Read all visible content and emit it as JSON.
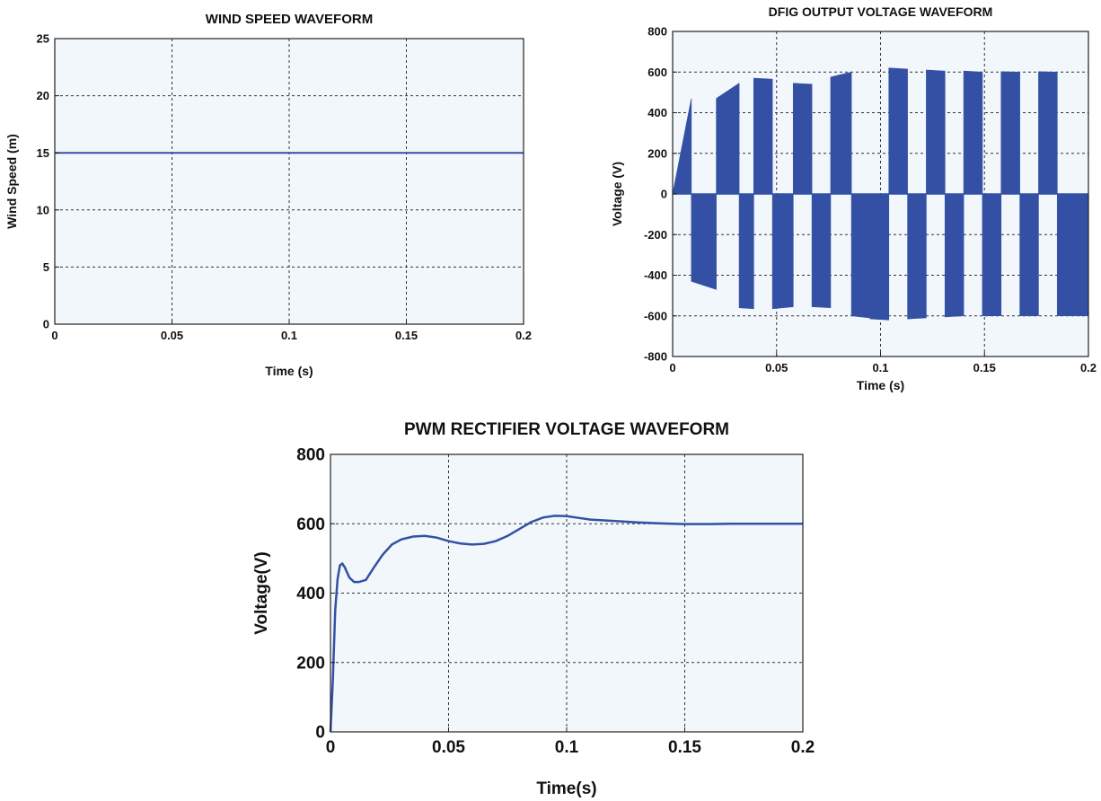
{
  "colors": {
    "line": "#3350a5",
    "plot_bg": "#f2f7fc",
    "grid": "#333333",
    "frame": "#222222"
  },
  "chart_data": [
    {
      "type": "line",
      "title": "WIND SPEED WAVEFORM",
      "xlabel": "Time (s)",
      "ylabel": "Wind Speed (m)",
      "xlim": [
        0,
        0.2
      ],
      "ylim": [
        0,
        25
      ],
      "x_ticks": [
        0,
        0.05,
        0.1,
        0.15,
        0.2
      ],
      "x_tick_labels": [
        "0",
        "0.05",
        "0.1",
        "0.15",
        "0.2"
      ],
      "y_ticks": [
        0,
        5,
        10,
        15,
        20,
        25
      ],
      "y_tick_labels": [
        "0",
        "5",
        "10",
        "15",
        "20",
        "25"
      ],
      "grid": true,
      "x": [
        0,
        0.2
      ],
      "y": [
        15,
        15
      ]
    },
    {
      "type": "area",
      "title": "DFIG OUTPUT VOLTAGE WAVEFORM",
      "xlabel": "Time (s)",
      "ylabel": "Voltage (V)",
      "xlim": [
        0,
        0.2
      ],
      "ylim": [
        -800,
        800
      ],
      "x_ticks": [
        0,
        0.05,
        0.1,
        0.15,
        0.2
      ],
      "x_tick_labels": [
        "0",
        "0.05",
        "0.1",
        "0.15",
        "0.2"
      ],
      "y_ticks": [
        -800,
        -600,
        -400,
        -200,
        0,
        200,
        400,
        600,
        800
      ],
      "y_tick_labels": [
        "-800",
        "-600",
        "-400",
        "-200",
        "0",
        "200",
        "400",
        "600",
        "800"
      ],
      "grid": true,
      "segments": [
        {
          "x0": 0.0,
          "x1": 0.009,
          "y0": 0,
          "y1": 470
        },
        {
          "x0": 0.009,
          "x1": 0.021,
          "y0": -430,
          "y1": -470
        },
        {
          "x0": 0.021,
          "x1": 0.032,
          "y0": 470,
          "y1": 545
        },
        {
          "x0": 0.032,
          "x1": 0.039,
          "y0": -560,
          "y1": -565
        },
        {
          "x0": 0.039,
          "x1": 0.048,
          "y0": 570,
          "y1": 565
        },
        {
          "x0": 0.048,
          "x1": 0.058,
          "y0": -565,
          "y1": -555
        },
        {
          "x0": 0.058,
          "x1": 0.067,
          "y0": 545,
          "y1": 540
        },
        {
          "x0": 0.067,
          "x1": 0.076,
          "y0": -555,
          "y1": -560
        },
        {
          "x0": 0.076,
          "x1": 0.086,
          "y0": 575,
          "y1": 600
        },
        {
          "x0": 0.086,
          "x1": 0.095,
          "y0": -600,
          "y1": -610
        },
        {
          "x0": 0.095,
          "x1": 0.104,
          "y0": -615,
          "y1": -620
        },
        {
          "x0": 0.104,
          "x1": 0.113,
          "y0": 620,
          "y1": 615
        },
        {
          "x0": 0.113,
          "x1": 0.122,
          "y0": -615,
          "y1": -610
        },
        {
          "x0": 0.122,
          "x1": 0.131,
          "y0": 610,
          "y1": 605
        },
        {
          "x0": 0.131,
          "x1": 0.14,
          "y0": -605,
          "y1": -600
        },
        {
          "x0": 0.14,
          "x1": 0.149,
          "y0": 605,
          "y1": 600
        },
        {
          "x0": 0.149,
          "x1": 0.158,
          "y0": -600,
          "y1": -600
        },
        {
          "x0": 0.158,
          "x1": 0.167,
          "y0": 602,
          "y1": 600
        },
        {
          "x0": 0.167,
          "x1": 0.176,
          "y0": -600,
          "y1": -600
        },
        {
          "x0": 0.176,
          "x1": 0.185,
          "y0": 602,
          "y1": 600
        },
        {
          "x0": 0.185,
          "x1": 0.2,
          "y0": -600,
          "y1": -600
        }
      ]
    },
    {
      "type": "line",
      "title": "PWM RECTIFIER VOLTAGE WAVEFORM",
      "xlabel": "Time(s)",
      "ylabel": "Voltage(V)",
      "xlim": [
        0,
        0.2
      ],
      "ylim": [
        0,
        800
      ],
      "x_ticks": [
        0,
        0.05,
        0.1,
        0.15,
        0.2
      ],
      "x_tick_labels": [
        "0",
        "0.05",
        "0.1",
        "0.15",
        "0.2"
      ],
      "y_ticks": [
        0,
        200,
        400,
        600,
        800
      ],
      "y_tick_labels": [
        "0",
        "200",
        "400",
        "600",
        "800"
      ],
      "grid": true,
      "x": [
        0,
        0.001,
        0.002,
        0.003,
        0.004,
        0.005,
        0.006,
        0.008,
        0.01,
        0.012,
        0.015,
        0.018,
        0.022,
        0.026,
        0.03,
        0.035,
        0.04,
        0.045,
        0.05,
        0.055,
        0.06,
        0.065,
        0.07,
        0.075,
        0.08,
        0.085,
        0.09,
        0.095,
        0.1,
        0.105,
        0.11,
        0.115,
        0.12,
        0.13,
        0.14,
        0.15,
        0.16,
        0.17,
        0.18,
        0.19,
        0.2
      ],
      "y": [
        0,
        150,
        350,
        440,
        480,
        485,
        475,
        445,
        432,
        432,
        438,
        470,
        510,
        540,
        555,
        563,
        565,
        560,
        550,
        543,
        540,
        542,
        550,
        565,
        585,
        605,
        618,
        623,
        622,
        617,
        612,
        610,
        608,
        604,
        601,
        599,
        599,
        600,
        600,
        600,
        600
      ]
    }
  ]
}
